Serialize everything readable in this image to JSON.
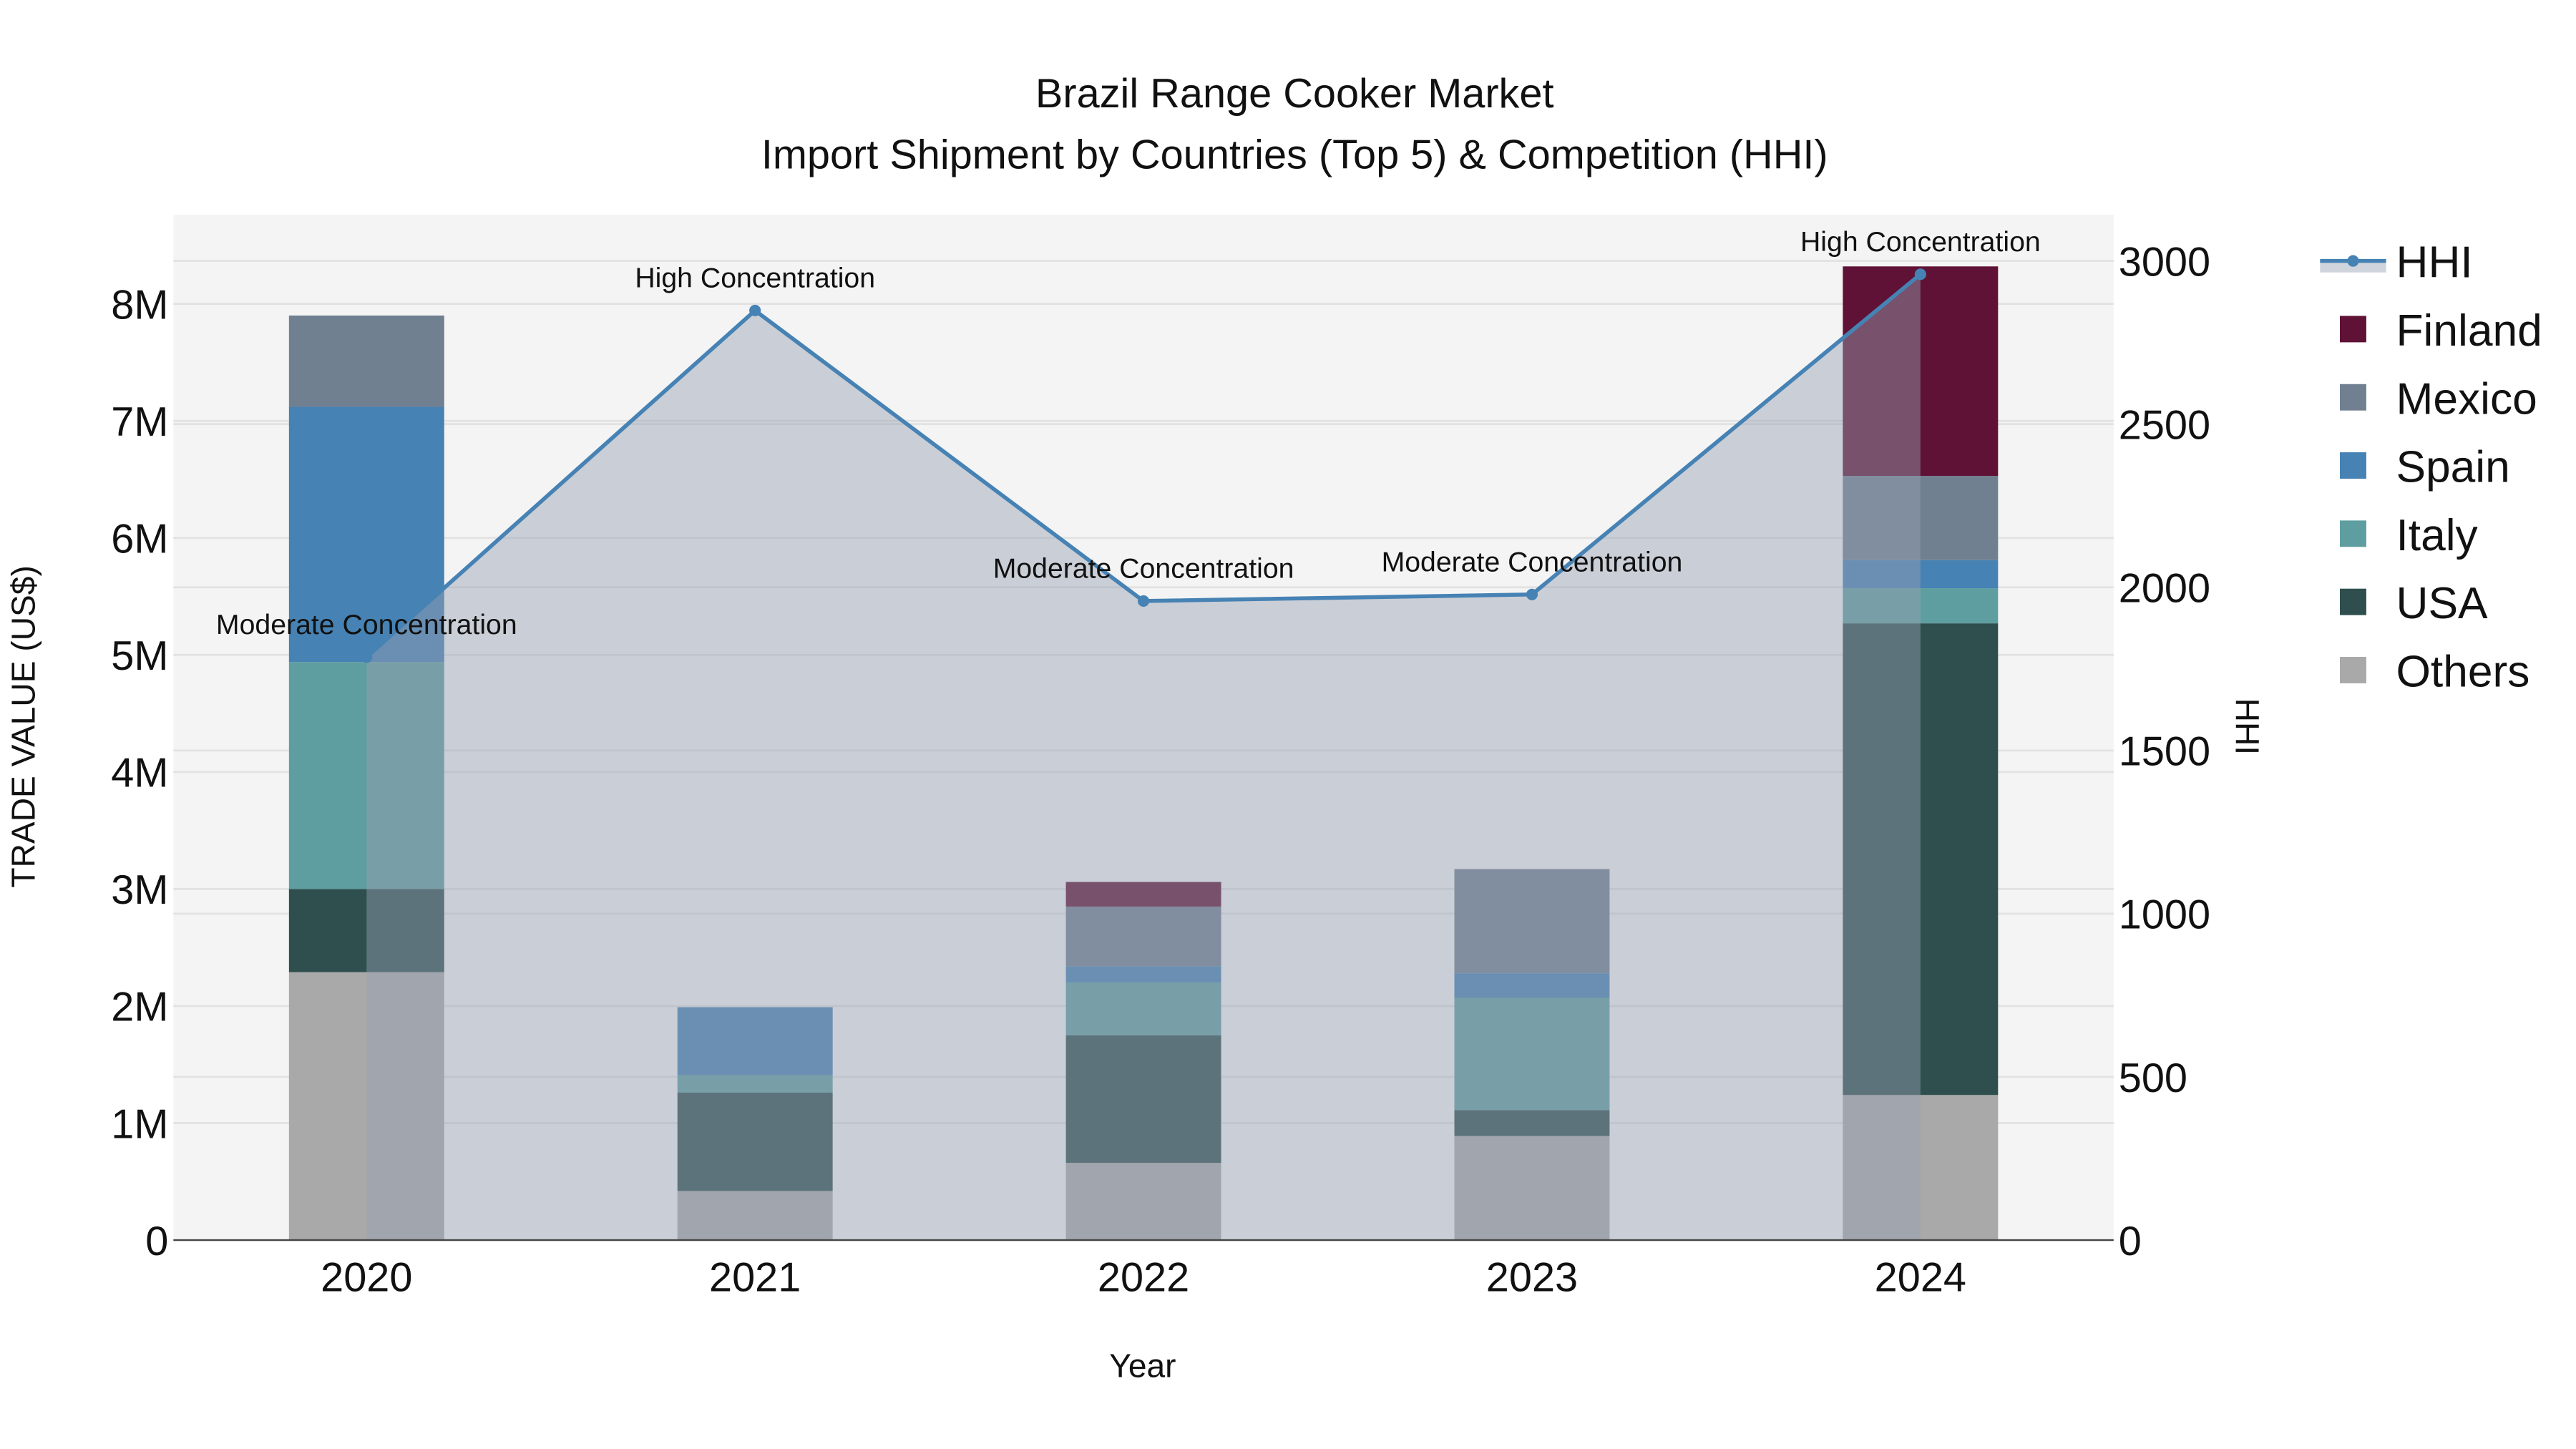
{
  "chart_data": {
    "type": "bar",
    "title": "Brazil Range Cooker Market",
    "subtitle": "Import Shipment by Countries (Top 5) & Competition (HHI)",
    "xlabel": "Year",
    "ylabel": "TRADE VALUE (US$)",
    "y2label": "HHI",
    "categories": [
      "2020",
      "2021",
      "2022",
      "2023",
      "2024"
    ],
    "ylim": [
      0,
      8700000
    ],
    "y2lim": [
      0,
      3150
    ],
    "yticks": [
      0,
      1000000,
      2000000,
      3000000,
      4000000,
      5000000,
      6000000,
      7000000,
      8000000
    ],
    "yticklabels": [
      "0",
      "1M",
      "2M",
      "3M",
      "4M",
      "5M",
      "6M",
      "7M",
      "8M"
    ],
    "y2ticks": [
      0,
      500,
      1000,
      1500,
      2000,
      2500,
      3000
    ],
    "y2ticklabels": [
      "0",
      "500",
      "1000",
      "1500",
      "2000",
      "2500",
      "3000"
    ],
    "grid": true,
    "legend_position": "right",
    "series": [
      {
        "name": "Others",
        "color": "#a9a9a9",
        "values": [
          2290000,
          420000,
          660000,
          890000,
          1240000
        ]
      },
      {
        "name": "USA",
        "color": "#2f4f4f",
        "values": [
          710000,
          840000,
          1090000,
          220000,
          4030000
        ]
      },
      {
        "name": "Italy",
        "color": "#5f9ea0",
        "values": [
          1940000,
          150000,
          450000,
          960000,
          300000
        ]
      },
      {
        "name": "Spain",
        "color": "#4682b4",
        "values": [
          2180000,
          580000,
          140000,
          210000,
          240000
        ]
      },
      {
        "name": "Mexico",
        "color": "#708090",
        "values": [
          780000,
          0,
          510000,
          890000,
          720000
        ]
      },
      {
        "name": "Finland",
        "color": "#5f1235",
        "values": [
          0,
          0,
          210000,
          0,
          1790000
        ]
      }
    ],
    "hhi": {
      "name": "HHI",
      "color": "#4682b4",
      "values": [
        1786,
        2848,
        1958,
        1978,
        2959
      ],
      "annotations": [
        "Moderate Concentration",
        "High Concentration",
        "Moderate Concentration",
        "Moderate Concentration",
        "High Concentration"
      ]
    },
    "legend": [
      "HHI",
      "Finland",
      "Mexico",
      "Spain",
      "Italy",
      "USA",
      "Others"
    ]
  }
}
